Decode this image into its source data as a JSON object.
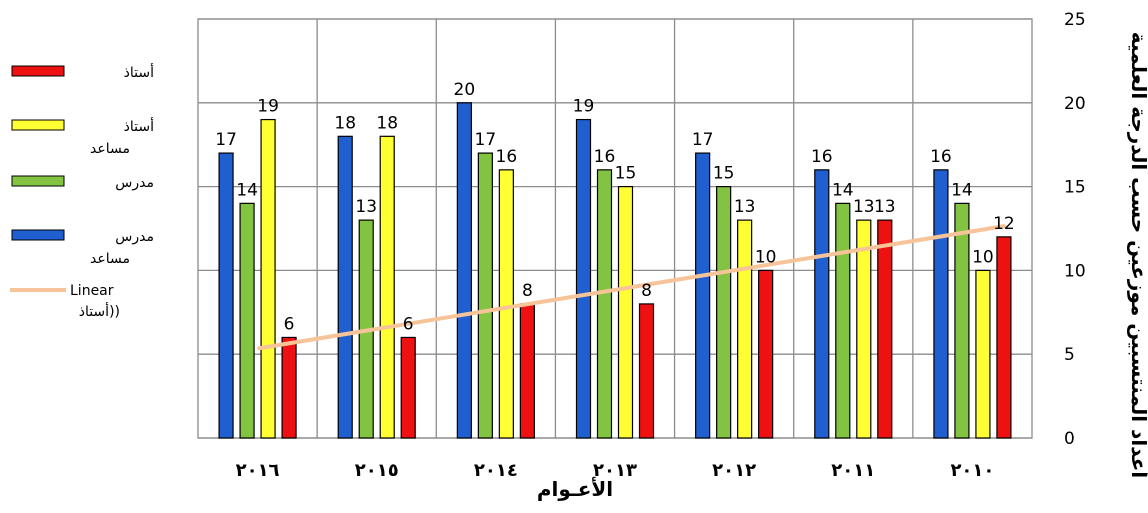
{
  "chart_data": {
    "type": "bar",
    "categories": [
      "٢٠١٦",
      "٢٠١٥",
      "٢٠١٤",
      "٢٠١٣",
      "٢٠١٢",
      "٢٠١١",
      "٢٠١٠"
    ],
    "series": [
      {
        "name": "مدرس مساعد",
        "color": "#1f5fcf",
        "values": [
          17,
          18,
          20,
          19,
          17,
          16,
          16
        ]
      },
      {
        "name": "مدرس",
        "color": "#82c341",
        "values": [
          14,
          13,
          17,
          16,
          15,
          14,
          14
        ]
      },
      {
        "name": "أستاذ مساعد",
        "color": "#ffff33",
        "values": [
          19,
          18,
          16,
          15,
          13,
          13,
          10
        ]
      },
      {
        "name": "أستاذ",
        "color": "#ee1111",
        "values": [
          6,
          6,
          8,
          8,
          10,
          13,
          12
        ]
      }
    ],
    "trendline": {
      "name": "Linear (أستاذ)",
      "of_series": "أستاذ",
      "color": "#f7c49a"
    },
    "xlabel": "الأعـوام",
    "ylabel": "أعداد المنتسبين موزعين حسب الدرجة العلمية",
    "ylim": [
      0,
      25
    ],
    "yticks": [
      0,
      5,
      10,
      15,
      20,
      25
    ],
    "grid": true,
    "legend_position": "left"
  },
  "legend": [
    {
      "lines": [
        "أستاذ"
      ]
    },
    {
      "lines": [
        "أستاذ",
        "مساعد"
      ]
    },
    {
      "lines": [
        "مدرس"
      ]
    },
    {
      "lines": [
        "مدرس",
        "مساعد"
      ]
    },
    {
      "lines": [
        "Linear",
        "أستاذ))"
      ]
    }
  ]
}
